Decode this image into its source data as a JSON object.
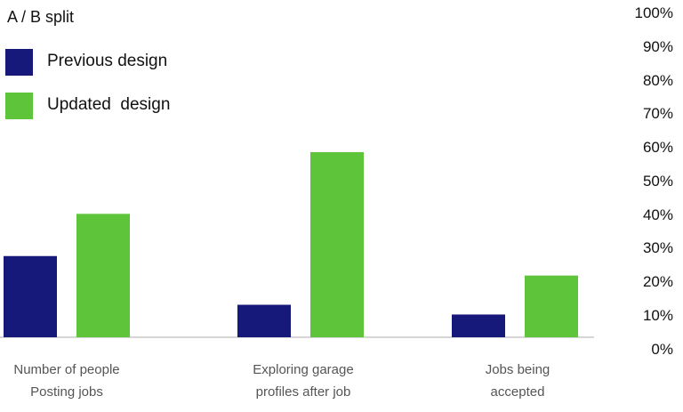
{
  "chart_data": {
    "type": "bar",
    "legend_title": "A / B split",
    "categories": [
      [
        "Number of people",
        "Posting jobs"
      ],
      [
        "Exploring garage",
        "profiles after job"
      ],
      [
        "Jobs being",
        "accepted"
      ]
    ],
    "series": [
      {
        "name": "Previous design",
        "color": "#17197a",
        "values": [
          25,
          10,
          7
        ]
      },
      {
        "name": "Updated  design",
        "color": "#5ec43a",
        "values": [
          38,
          57,
          19
        ]
      }
    ],
    "yticks": [
      "100%",
      "90%",
      "80%",
      "70%",
      "60%",
      "50%",
      "40%",
      "30%",
      "20%",
      "10%",
      "0%"
    ],
    "ylim": [
      0,
      100
    ],
    "grid": false,
    "legend_position": "top-left",
    "yaxis_position": "right"
  }
}
